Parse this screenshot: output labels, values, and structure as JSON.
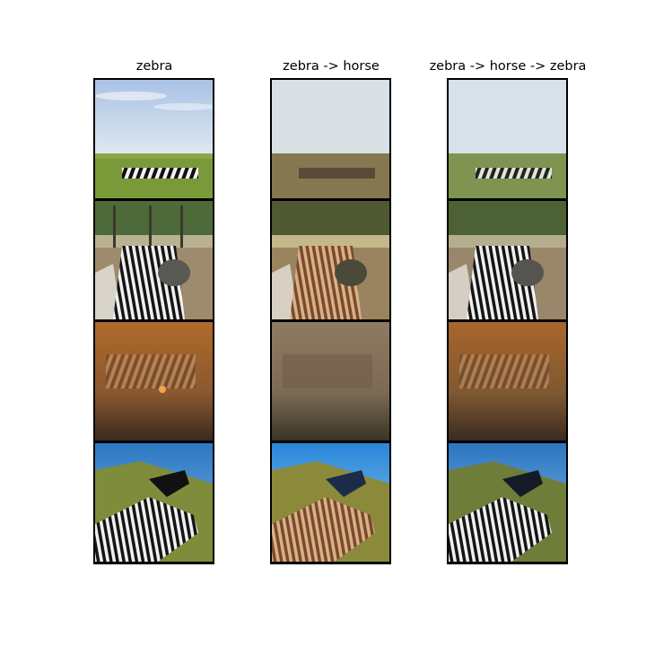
{
  "figure": {
    "columns": [
      {
        "title": "zebra",
        "variant": "original"
      },
      {
        "title": "zebra -> horse",
        "variant": "translated"
      },
      {
        "title": "zebra -> horse -> zebra",
        "variant": "reconstructed"
      }
    ],
    "rows": [
      {
        "scene": "savanna-herd"
      },
      {
        "scene": "zebra-closeup-trees"
      },
      {
        "scene": "zebras-dusty-fire"
      },
      {
        "scene": "zebra-hillside-sky"
      }
    ]
  }
}
